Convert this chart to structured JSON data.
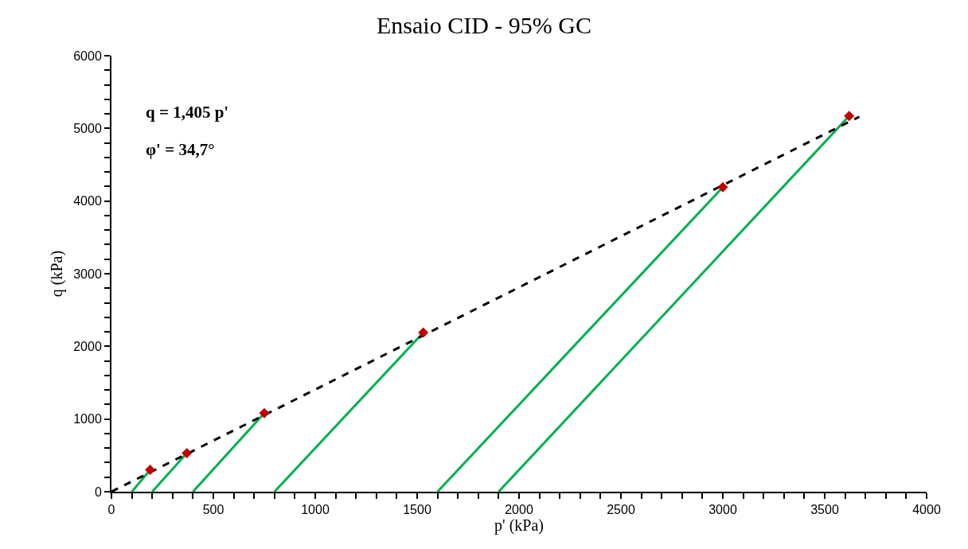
{
  "chart_data": {
    "type": "line",
    "title": "Ensaio CID - 95% GC",
    "xlabel": "p' (kPa)",
    "ylabel": "q (kPa)",
    "xlim": [
      0,
      4000
    ],
    "ylim": [
      0,
      6000
    ],
    "xticks": [
      0,
      {
        "value": 100,
        "label": null
      },
      {
        "value": 200,
        "label": null
      },
      {
        "value": 300,
        "label": null
      },
      {
        "value": 400,
        "label": null
      },
      500,
      {
        "value": 600,
        "label": null
      },
      {
        "value": 700,
        "label": null
      },
      {
        "value": 800,
        "label": null
      },
      {
        "value": 900,
        "label": null
      },
      1000,
      {
        "value": 1100,
        "label": null
      },
      {
        "value": 1200,
        "label": null
      },
      {
        "value": 1300,
        "label": null
      },
      {
        "value": 1400,
        "label": null
      },
      1500,
      {
        "value": 1600,
        "label": null
      },
      {
        "value": 1700,
        "label": null
      },
      {
        "value": 1800,
        "label": null
      },
      {
        "value": 1900,
        "label": null
      },
      2000,
      {
        "value": 2100,
        "label": null
      },
      {
        "value": 2200,
        "label": null
      },
      {
        "value": 2300,
        "label": null
      },
      {
        "value": 2400,
        "label": null
      },
      2500,
      {
        "value": 2600,
        "label": null
      },
      {
        "value": 2700,
        "label": null
      },
      {
        "value": 2800,
        "label": null
      },
      {
        "value": 2900,
        "label": null
      },
      3000,
      {
        "value": 3100,
        "label": null
      },
      {
        "value": 3200,
        "label": null
      },
      {
        "value": 3300,
        "label": null
      },
      {
        "value": 3400,
        "label": null
      },
      3500,
      {
        "value": 3600,
        "label": null
      },
      {
        "value": 3700,
        "label": null
      },
      {
        "value": 3800,
        "label": null
      },
      {
        "value": 3900,
        "label": null
      },
      4000
    ],
    "yticks": [
      0,
      {
        "value": 200,
        "label": null
      },
      {
        "value": 400,
        "label": null
      },
      {
        "value": 600,
        "label": null
      },
      {
        "value": 800,
        "label": null
      },
      1000,
      {
        "value": 1200,
        "label": null
      },
      {
        "value": 1400,
        "label": null
      },
      {
        "value": 1600,
        "label": null
      },
      {
        "value": 1800,
        "label": null
      },
      2000,
      {
        "value": 2200,
        "label": null
      },
      {
        "value": 2400,
        "label": null
      },
      {
        "value": 2600,
        "label": null
      },
      {
        "value": 2800,
        "label": null
      },
      3000,
      {
        "value": 3200,
        "label": null
      },
      {
        "value": 3400,
        "label": null
      },
      {
        "value": 3600,
        "label": null
      },
      {
        "value": 3800,
        "label": null
      },
      4000,
      {
        "value": 4200,
        "label": null
      },
      {
        "value": 4400,
        "label": null
      },
      {
        "value": 4600,
        "label": null
      },
      {
        "value": 4800,
        "label": null
      },
      5000,
      {
        "value": 5200,
        "label": null
      },
      {
        "value": 5400,
        "label": null
      },
      {
        "value": 5600,
        "label": null
      },
      {
        "value": 5800,
        "label": null
      },
      6000
    ],
    "series": [
      {
        "color": "#00b050",
        "x": [
          100,
          190
        ],
        "values": [
          0,
          300
        ]
      },
      {
        "color": "#00b050",
        "x": [
          200,
          370
        ],
        "values": [
          0,
          530
        ]
      },
      {
        "color": "#00b050",
        "x": [
          400,
          750
        ],
        "values": [
          0,
          1080
        ]
      },
      {
        "color": "#00b050",
        "x": [
          800,
          1530
        ],
        "values": [
          0,
          2190
        ]
      },
      {
        "color": "#00b050",
        "x": [
          1600,
          3000
        ],
        "values": [
          0,
          4190
        ]
      },
      {
        "color": "#00b050",
        "x": [
          1900,
          3620
        ],
        "values": [
          0,
          5170
        ]
      },
      {
        "color": "#000000",
        "line_style": "dashed",
        "x": [
          0,
          3670
        ],
        "values": [
          0,
          5160
        ]
      },
      {
        "type": "scatter",
        "color": "#c00000",
        "marker": "diamond",
        "x": [
          190,
          370,
          750,
          1530,
          3000,
          3620
        ],
        "values": [
          300,
          530,
          1080,
          2190,
          4190,
          5170
        ]
      }
    ],
    "annotations": [
      "q = 1,405 p'",
      "φ' = 34,7°"
    ]
  }
}
